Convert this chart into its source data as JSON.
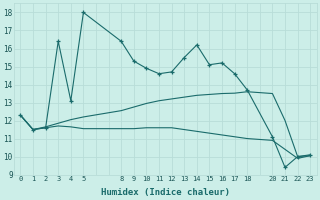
{
  "xlabel": "Humidex (Indice chaleur)",
  "background_color": "#cceee8",
  "grid_color": "#b8ddd8",
  "line_color": "#1a6b6b",
  "ylim": [
    9,
    18.5
  ],
  "xlim": [
    -0.5,
    23.5
  ],
  "yticks": [
    9,
    10,
    11,
    12,
    13,
    14,
    15,
    16,
    17,
    18
  ],
  "xticks": [
    0,
    1,
    2,
    3,
    4,
    5,
    8,
    9,
    10,
    11,
    12,
    13,
    14,
    15,
    16,
    17,
    18,
    20,
    21,
    22,
    23
  ],
  "line1_x": [
    0,
    1,
    2,
    3,
    4,
    5,
    8,
    9,
    10,
    11,
    12,
    13,
    14,
    15,
    16,
    17,
    18,
    20,
    21,
    22,
    23
  ],
  "line1_y": [
    12.3,
    11.5,
    11.6,
    16.4,
    13.1,
    18.0,
    16.4,
    15.3,
    14.9,
    14.6,
    14.7,
    15.5,
    16.2,
    15.1,
    15.2,
    14.6,
    13.7,
    11.1,
    9.4,
    10.0,
    10.1
  ],
  "line2_x": [
    0,
    1,
    2,
    3,
    4,
    5,
    8,
    9,
    10,
    11,
    12,
    13,
    14,
    15,
    16,
    17,
    18,
    20,
    21,
    22,
    23
  ],
  "line2_y": [
    12.3,
    11.5,
    11.6,
    11.7,
    11.65,
    11.55,
    11.55,
    11.55,
    11.6,
    11.6,
    11.6,
    11.5,
    11.4,
    11.3,
    11.2,
    11.1,
    11.0,
    10.9,
    10.4,
    9.9,
    10.05
  ],
  "line3_x": [
    0,
    1,
    2,
    3,
    4,
    5,
    8,
    9,
    10,
    11,
    12,
    13,
    14,
    15,
    16,
    17,
    18,
    20,
    21,
    22,
    23
  ],
  "line3_y": [
    12.3,
    11.5,
    11.65,
    11.85,
    12.05,
    12.2,
    12.55,
    12.75,
    12.95,
    13.1,
    13.2,
    13.3,
    13.4,
    13.45,
    13.5,
    13.52,
    13.6,
    13.5,
    12.0,
    10.0,
    10.05
  ]
}
